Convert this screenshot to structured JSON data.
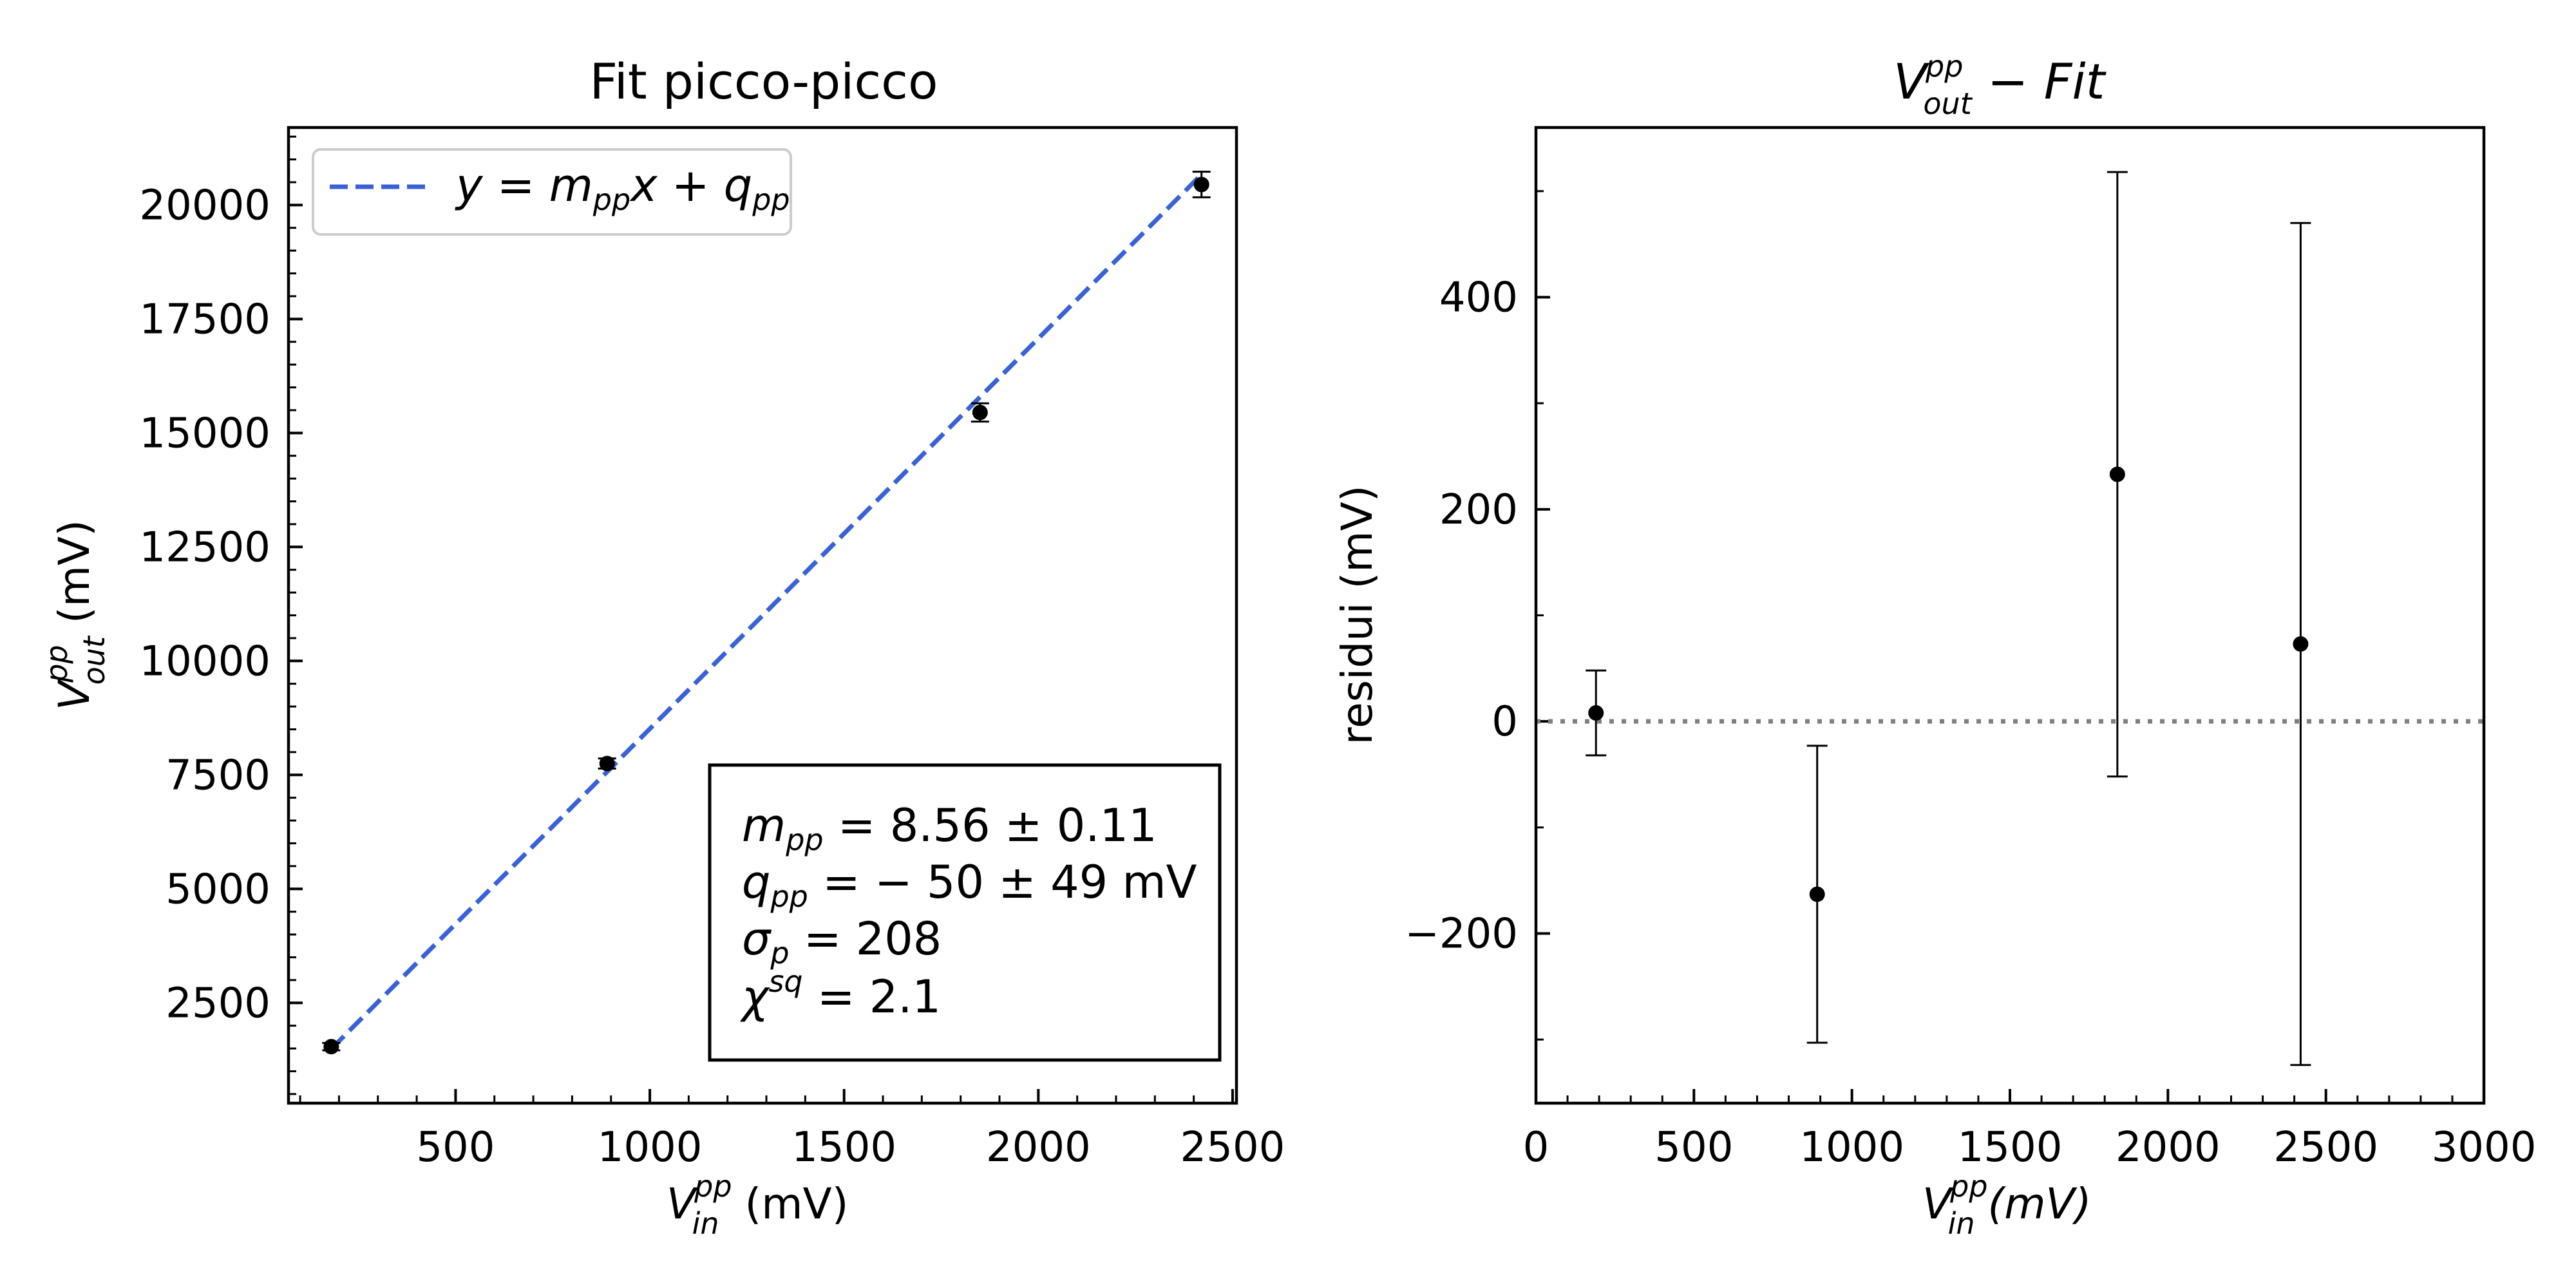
{
  "chart_data": [
    {
      "type": "scatter",
      "title": "Fit picco-picco",
      "xlabel": {
        "base": "V",
        "sup": "pp",
        "sub": "in",
        "unit": "(mV)"
      },
      "ylabel": {
        "base": "V",
        "sup": "pp",
        "sub": "out",
        "unit": "(mV)"
      },
      "xlim": [
        70,
        2510
      ],
      "ylim": [
        300,
        21700
      ],
      "xticks": [
        500,
        1000,
        1500,
        2000,
        2500
      ],
      "yticks": [
        2500,
        5000,
        7500,
        10000,
        12500,
        15000,
        17500,
        20000
      ],
      "xtick_labels": [
        "500",
        "1000",
        "1500",
        "2000",
        "2500"
      ],
      "ytick_labels": [
        "2500",
        "5000",
        "7500",
        "10000",
        "12500",
        "15000",
        "17500",
        "20000"
      ],
      "points": [
        {
          "x": 180,
          "y": 1540,
          "yerr": 80
        },
        {
          "x": 890,
          "y": 7750,
          "yerr": 110
        },
        {
          "x": 1850,
          "y": 15450,
          "yerr": 200
        },
        {
          "x": 2420,
          "y": 20450,
          "yerr": 280
        }
      ],
      "fit_line": {
        "x": [
          180,
          2420
        ],
        "y": [
          1490,
          20670
        ],
        "color": "#3a62d6",
        "style": "dashed"
      },
      "legend": {
        "position": "top-left",
        "label": {
          "y": "y",
          "eq": " = ",
          "m": "m",
          "msub": "pp",
          "x": "x",
          "plus": " + ",
          "q": "q",
          "qsub": "pp"
        }
      },
      "annotation": {
        "position": "bottom-right",
        "m": {
          "sym": "m",
          "sub": "pp",
          "text": " = 8.56 ± 0.11"
        },
        "q": {
          "sym": "q",
          "sub": "pp",
          "text": " = − 50 ± 49 mV"
        },
        "sigma": {
          "sym": "σ",
          "sub": "p",
          "text": " = 208"
        },
        "chi": {
          "sym": "χ",
          "sup": "sq",
          "text": " = 2.1"
        }
      },
      "colors": {
        "points": "#000000",
        "fit": "#3a62d6"
      }
    },
    {
      "type": "scatter",
      "title": {
        "base": "V",
        "sup": "pp",
        "sub": "out",
        "rest": " − Fit"
      },
      "xlabel": {
        "base": "V",
        "sup": "pp",
        "sub": "in",
        "unit": "(mV)"
      },
      "ylabel": "residui (mV)",
      "xlim": [
        0,
        3000
      ],
      "ylim": [
        -360,
        560
      ],
      "xticks": [
        0,
        500,
        1000,
        1500,
        2000,
        2500,
        3000
      ],
      "yticks": [
        -200,
        0,
        200,
        400
      ],
      "xtick_labels": [
        "0",
        "500",
        "1000",
        "1500",
        "2000",
        "2500",
        "3000"
      ],
      "ytick_labels": [
        "−200",
        "0",
        "200",
        "400"
      ],
      "points": [
        {
          "x": 190,
          "y": 8,
          "yerr": 40
        },
        {
          "x": 890,
          "y": -163,
          "yerr": 140
        },
        {
          "x": 1840,
          "y": 233,
          "yerr": 285
        },
        {
          "x": 2420,
          "y": 73,
          "yerr": 397
        }
      ],
      "zero_line": {
        "y": 0,
        "color": "#808080",
        "style": "dotted"
      },
      "colors": {
        "points": "#000000"
      }
    }
  ]
}
